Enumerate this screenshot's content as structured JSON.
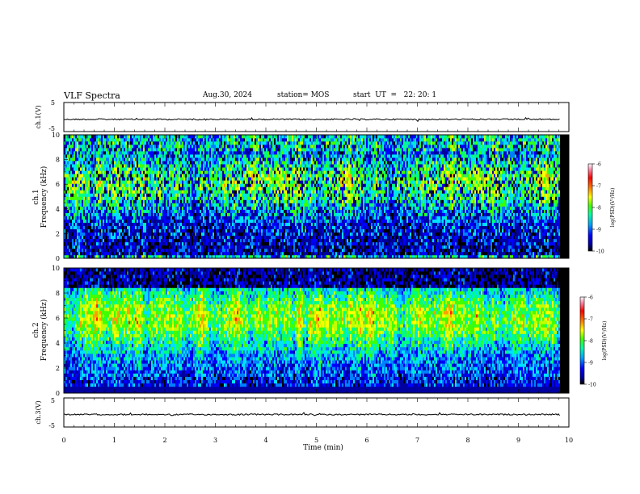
{
  "header": {
    "title": "VLF Spectra",
    "date": "Aug.30, 2024",
    "station": "station= MOS",
    "start": "start  UT  =   22: 20: 1"
  },
  "chart_data": [
    {
      "type": "line",
      "panel": "ch1-waveform",
      "ylabel": "ch.1(V)",
      "ylim": [
        -5,
        5
      ],
      "yticks": [
        "5",
        "-5"
      ],
      "xlim": [
        0,
        10
      ],
      "series": [
        {
          "x": [
            0,
            9.82
          ],
          "values": [
            -0.8,
            -0.8
          ]
        }
      ]
    },
    {
      "type": "heatmap",
      "panel": "ch1-spectrogram",
      "ylabel": "Frequency (kHz)",
      "panel_label": "ch.1",
      "ylim": [
        0,
        10
      ],
      "yticks": [
        "0",
        "2",
        "4",
        "6",
        "8",
        "10"
      ],
      "xlim": [
        0,
        10
      ],
      "data_end_min": 9.82,
      "colorbar": {
        "label": "log(PSD)(V²/Hz)",
        "range": [
          -10,
          -6
        ],
        "ticks": [
          "-6",
          "-7",
          "-8",
          "-9",
          "-10"
        ]
      }
    },
    {
      "type": "heatmap",
      "panel": "ch2-spectrogram",
      "ylabel": "Frequency (kHz)",
      "panel_label": "ch.2",
      "ylim": [
        0,
        10
      ],
      "yticks": [
        "0",
        "2",
        "4",
        "6",
        "8",
        "10"
      ],
      "xlim": [
        0,
        10
      ],
      "data_end_min": 9.82,
      "colorbar": {
        "label": "log(PSD)(V²/Hz)",
        "range": [
          -10,
          -6
        ],
        "ticks": [
          "-6",
          "-7",
          "-8",
          "-9",
          "-10"
        ]
      }
    },
    {
      "type": "line",
      "panel": "ch3-waveform",
      "ylabel": "ch.3(V)",
      "ylim": [
        -5,
        5
      ],
      "yticks": [
        "5",
        "-5"
      ],
      "xlim": [
        0,
        10
      ],
      "series": [
        {
          "x": [
            0,
            9.82
          ],
          "values": [
            -0.7,
            -0.7
          ]
        }
      ]
    }
  ],
  "xaxis": {
    "label": "Time  (min)",
    "ticks": [
      "0",
      "1",
      "2",
      "3",
      "4",
      "5",
      "6",
      "7",
      "8",
      "9",
      "10"
    ]
  },
  "colorscale": [
    "#000000",
    "#0000a0",
    "#0000ff",
    "#0080ff",
    "#00e0ff",
    "#00ff80",
    "#40ff00",
    "#c0ff00",
    "#ffff00",
    "#ffa000",
    "#ff2000",
    "#ff80a0",
    "#ffffff"
  ]
}
